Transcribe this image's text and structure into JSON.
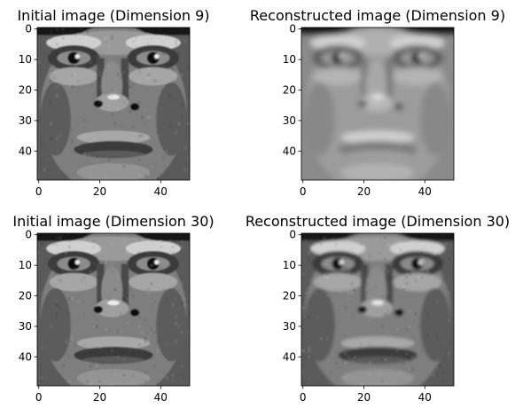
{
  "figure": {
    "background": "#ffffff",
    "colormap": "gray"
  },
  "chart_data": [
    {
      "type": "heatmap",
      "title": "Initial image (Dimension 9)",
      "subject": "face",
      "image_size": [
        50,
        50
      ],
      "colormap": "gray",
      "xlim": [
        0,
        50
      ],
      "ylim": [
        50,
        0
      ],
      "xticks": [
        0,
        20,
        40
      ],
      "yticks": [
        0,
        10,
        20,
        30,
        40
      ],
      "variant": "initial"
    },
    {
      "type": "heatmap",
      "title": "Reconstructed image (Dimension 9)",
      "subject": "face",
      "image_size": [
        50,
        50
      ],
      "colormap": "gray",
      "xlim": [
        0,
        50
      ],
      "ylim": [
        50,
        0
      ],
      "xticks": [
        0,
        20,
        40
      ],
      "yticks": [
        0,
        10,
        20,
        30,
        40
      ],
      "variant": "reconstructed-9"
    },
    {
      "type": "heatmap",
      "title": "Initial image (Dimension 30)",
      "subject": "face",
      "image_size": [
        50,
        50
      ],
      "colormap": "gray",
      "xlim": [
        0,
        50
      ],
      "ylim": [
        50,
        0
      ],
      "xticks": [
        0,
        20,
        40
      ],
      "yticks": [
        0,
        10,
        20,
        30,
        40
      ],
      "variant": "initial"
    },
    {
      "type": "heatmap",
      "title": "Reconstructed image (Dimension 30)",
      "subject": "face",
      "image_size": [
        50,
        50
      ],
      "colormap": "gray",
      "xlim": [
        0,
        50
      ],
      "ylim": [
        50,
        0
      ],
      "xticks": [
        0,
        20,
        40
      ],
      "yticks": [
        0,
        10,
        20,
        30,
        40
      ],
      "variant": "reconstructed-30"
    }
  ]
}
